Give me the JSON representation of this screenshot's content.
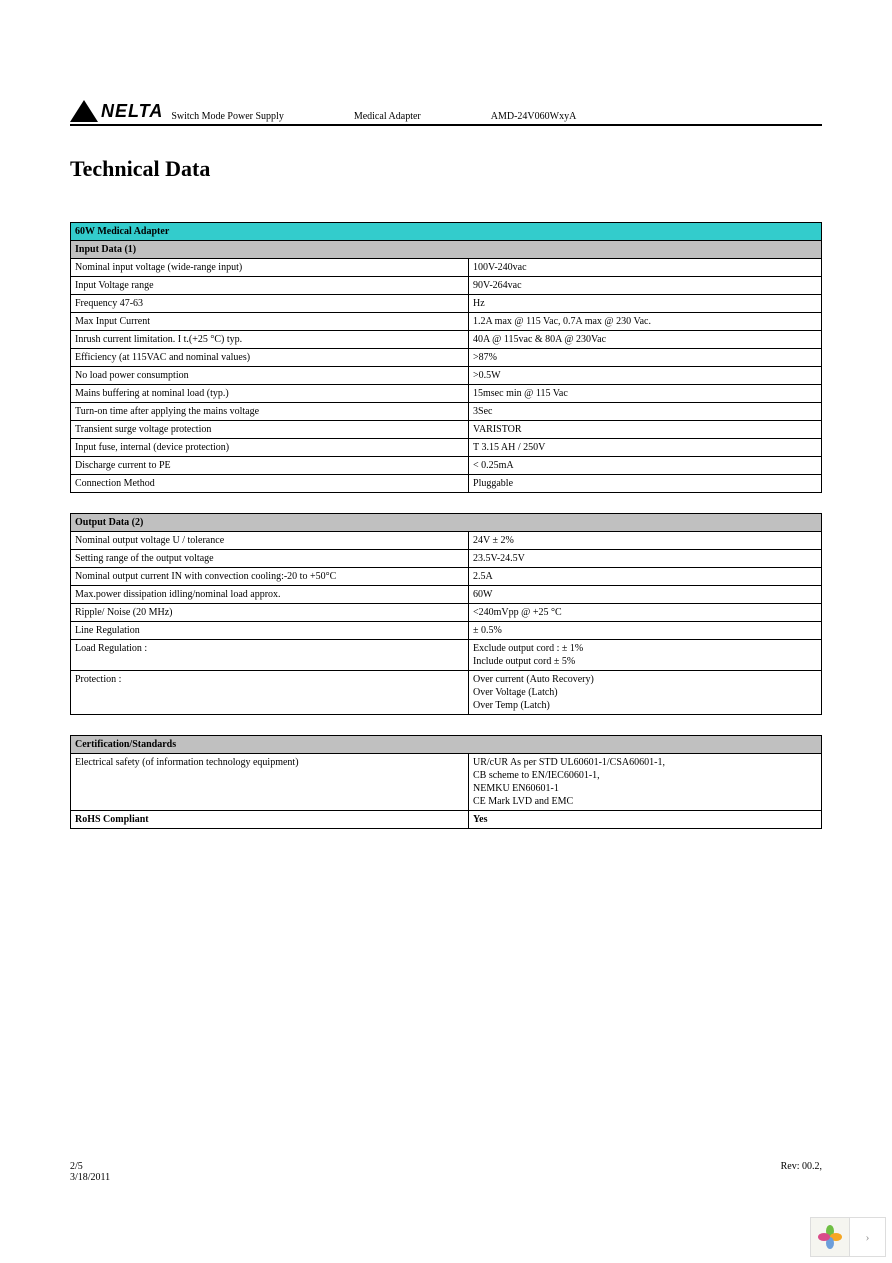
{
  "header": {
    "logo_text": "NELTA",
    "item1": "Switch Mode Power Supply",
    "item2": "Medical Adapter",
    "item3": "AMD-24V060WxyA"
  },
  "title": "Technical Data",
  "table1": {
    "title": "60W Medical Adapter",
    "section": "Input Data (1)",
    "rows": [
      {
        "label": "Nominal input voltage (wide-range input)",
        "value": "100V-240vac"
      },
      {
        "label": "Input Voltage range",
        "value": "90V-264vac"
      },
      {
        "label": "Frequency 47-63",
        "value": "Hz"
      },
      {
        "label": "Max Input Current",
        "value": "1.2A max @ 115 Vac, 0.7A max @ 230 Vac."
      },
      {
        "label": "Inrush current limitation. I          t.(+25 °C) typ.",
        "value": "40A @ 115vac & 80A @ 230Vac"
      },
      {
        "label": "Efficiency  (at 115VAC and nominal values)",
        "value": ">87%"
      },
      {
        "label": "No load power consumption",
        "value": ">0.5W"
      },
      {
        "label": "Mains buffering at nominal load (typ.)",
        "value": "15msec min @ 115 Vac"
      },
      {
        "label": "Turn-on time after applying the mains voltage",
        "value": "3Sec"
      },
      {
        "label": "Transient surge voltage protection",
        "value": "VARISTOR"
      },
      {
        "label": "Input fuse, internal (device protection)",
        "value": "T 3.15 AH / 250V"
      },
      {
        "label": "Discharge current to PE",
        "value": "< 0.25mA"
      },
      {
        "label": "Connection Method",
        "value": "Pluggable"
      }
    ]
  },
  "table2": {
    "section": "Output Data (2)",
    "rows": [
      {
        "label": "Nominal output voltage U            / tolerance",
        "value": "24V ± 2%"
      },
      {
        "label": "Setting range of the output voltage",
        "value": "23.5V-24.5V"
      },
      {
        "label": "Nominal output current IN with convection cooling:-20 to +50°C",
        "value": "2.5A"
      },
      {
        "label": "Max.power dissipation idling/nominal load approx.",
        "value": "60W"
      },
      {
        "label": "Ripple/ Noise (20 MHz)",
        "value": "<240mVpp @ +25 °C"
      },
      {
        "label": "Line Regulation",
        "value": "± 0.5%"
      },
      {
        "label": "Load Regulation :",
        "value": "Exclude output  cord : ± 1%\nInclude output cord  ± 5%"
      },
      {
        "label": "Protection :",
        "value": "Over current (Auto Recovery)\nOver Voltage (Latch)\nOver Temp (Latch)"
      }
    ]
  },
  "table3": {
    "section": "Certification/Standards",
    "rows": [
      {
        "label": "Electrical safety (of information technology equipment)",
        "value": "UR/cUR As per STD UL60601-1/CSA60601-1,\nCB scheme to EN/IEC60601-1,\nNEMKU EN60601-1\nCE Mark LVD and EMC"
      },
      {
        "label": "RoHS Compliant",
        "value": "Yes",
        "bold": true
      }
    ]
  },
  "footer": {
    "page": "2/5",
    "date": "3/18/2011",
    "rev": "Rev: 00.2,"
  },
  "colors": {
    "title_row": "#33cccc",
    "section_row": "#c0c0c0",
    "border": "#000000",
    "bg": "#ffffff"
  },
  "petal": {
    "colors": [
      "#6fbf44",
      "#f5a623",
      "#6d9edb",
      "#d94c8a"
    ]
  }
}
